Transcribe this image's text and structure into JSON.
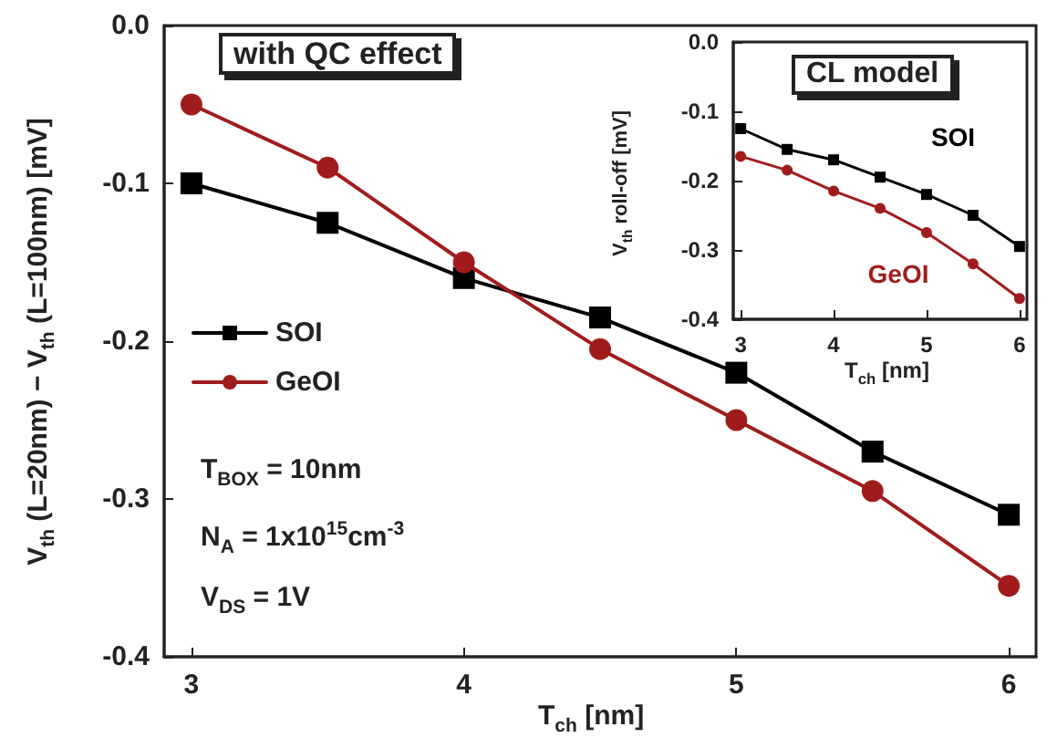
{
  "chart_data": [
    {
      "type": "line",
      "xlabel": "T$_{ch}$ [nm]",
      "ylabel": "V$_{th}$ (L=20nm) − V$_{th}$ (L=100nm) [mV]",
      "x": [
        3,
        3.5,
        4,
        4.5,
        5,
        5.5,
        6
      ],
      "series": [
        {
          "name": "SOI",
          "color": "#000000",
          "marker": "square",
          "values": [
            -0.1,
            -0.125,
            -0.16,
            -0.185,
            -0.22,
            -0.27,
            -0.31
          ]
        },
        {
          "name": "GeOI",
          "color": "#a01c1c",
          "marker": "circle",
          "values": [
            -0.05,
            -0.09,
            -0.15,
            -0.205,
            -0.25,
            -0.295,
            -0.355
          ]
        }
      ],
      "xlim": [
        2.9,
        6.1
      ],
      "xticks": [
        3,
        4,
        5,
        6
      ],
      "ylim": [
        -0.4,
        0
      ],
      "yticks": [
        -0.4,
        -0.3,
        -0.2,
        -0.1,
        {
          "value": 0,
          "label": "0.0"
        }
      ],
      "grid": false,
      "legend": "left",
      "line_style": "solid",
      "annotations": [
        "with QC effect",
        "T$_{BOX}$ = 10nm",
        "N$_{A}$ = 1x10$^{15}$cm$^{-3}$",
        "V$_{DS}$ = 1V"
      ]
    },
    {
      "type": "line",
      "xlabel": "T$_{ch}$ [nm]",
      "ylabel": "V$_{th}$ roll-off [mV]",
      "x": [
        3,
        3.5,
        4,
        4.5,
        5,
        5.5,
        6
      ],
      "series": [
        {
          "name": "SOI",
          "color": "#000000",
          "marker": "square",
          "values": [
            -0.125,
            -0.155,
            -0.17,
            -0.195,
            -0.22,
            -0.25,
            -0.295
          ]
        },
        {
          "name": "GeOI",
          "color": "#a01c1c",
          "marker": "circle",
          "values": [
            -0.165,
            -0.185,
            -0.215,
            -0.24,
            -0.275,
            -0.32,
            -0.37
          ]
        }
      ],
      "xlim": [
        2.92,
        6.08
      ],
      "xticks": [
        3,
        4,
        5,
        6
      ],
      "ylim": [
        -0.4,
        0
      ],
      "yticks": [
        -0.4,
        -0.3,
        -0.2,
        -0.1,
        {
          "value": 0,
          "label": "0.0"
        }
      ],
      "grid": false,
      "legend": false,
      "line_style": "solid",
      "annotations": [
        "CL model"
      ]
    }
  ]
}
